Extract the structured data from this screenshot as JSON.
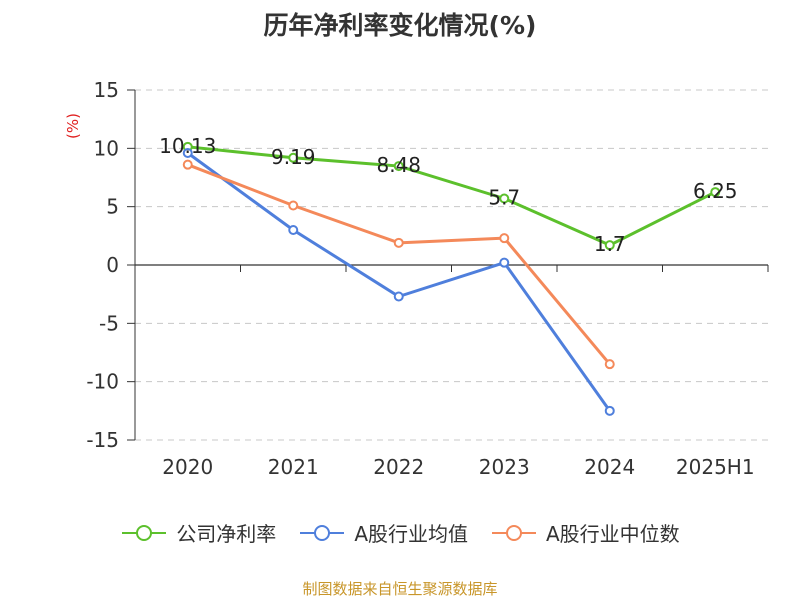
{
  "title": "历年净利率变化情况(%)",
  "source_note": "制图数据来自恒生聚源数据库",
  "chart_data": {
    "type": "line",
    "title": "历年净利率变化情况(%)",
    "ylabel": "(%)",
    "xlabel": "",
    "categories": [
      "2020",
      "2021",
      "2022",
      "2023",
      "2024",
      "2025H1"
    ],
    "ylim": [
      -15,
      15
    ],
    "yticks": [
      15,
      10,
      5,
      0,
      -5,
      -10,
      -15
    ],
    "grid": true,
    "legend_position": "bottom",
    "series": [
      {
        "name": "公司净利率",
        "color": "#5cc02c",
        "values": [
          10.13,
          9.19,
          8.48,
          5.7,
          1.7,
          6.25
        ],
        "labels": [
          "10.13",
          "9.19",
          "8.48",
          "5.7",
          "1.7",
          "6.25"
        ]
      },
      {
        "name": "A股行业均值",
        "color": "#4f7fdc",
        "values": [
          9.6,
          3.0,
          -2.7,
          0.2,
          -12.5,
          null
        ]
      },
      {
        "name": "A股行业中位数",
        "color": "#f4895a",
        "values": [
          8.6,
          5.1,
          1.9,
          2.3,
          -8.5,
          null
        ]
      }
    ]
  }
}
